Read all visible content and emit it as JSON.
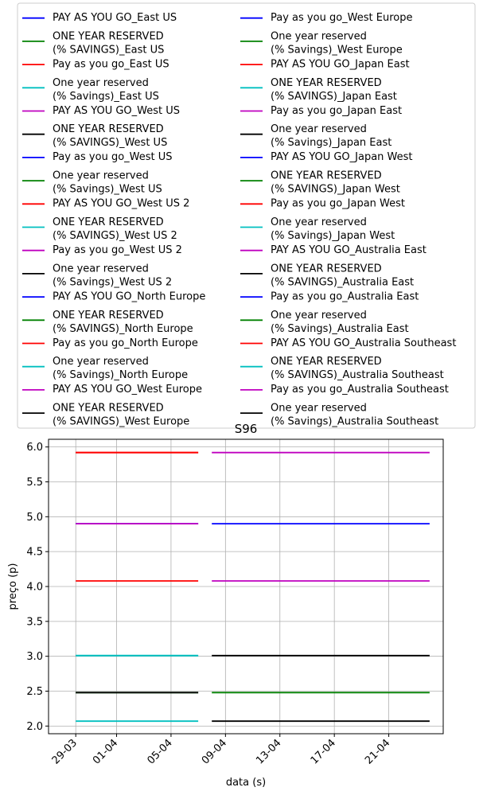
{
  "chart_data": {
    "type": "line",
    "title": "S96",
    "xlabel": "data (s)",
    "ylabel": "preço (p)",
    "ylim": [
      1.89,
      6.11
    ],
    "yticks": [
      2.0,
      2.5,
      3.0,
      3.5,
      4.0,
      4.5,
      5.0,
      5.5,
      6.0
    ],
    "ytick_labels": [
      "2.0",
      "2.5",
      "3.0",
      "3.5",
      "4.0",
      "4.5",
      "5.0",
      "5.5",
      "6.0"
    ],
    "xlim": [
      "2020-03-27",
      "2020-04-25"
    ],
    "xticks": [
      "2020-03-29",
      "2020-04-01",
      "2020-04-05",
      "2020-04-09",
      "2020-04-13",
      "2020-04-17",
      "2020-04-21"
    ],
    "xtick_labels": [
      "29-03",
      "01-04",
      "05-04",
      "09-04",
      "13-04",
      "17-04",
      "21-04"
    ],
    "grid": true,
    "legend_position": "top",
    "legend_columns": 2,
    "series": [
      {
        "name": "PAY AS YOU GO_East US",
        "color": "#0000ff",
        "segments": [
          {
            "x": [
              "2020-03-29",
              "2020-04-07"
            ],
            "y": [
              4.9,
              4.9
            ]
          }
        ]
      },
      {
        "name": "ONE YEAR RESERVED\n(% SAVINGS)_East US",
        "color": "#008000",
        "segments": [
          {
            "x": [
              "2020-03-29",
              "2020-04-07"
            ],
            "y": [
              2.48,
              2.48
            ]
          }
        ]
      },
      {
        "name": "Pay as you go_East US",
        "color": "#ff0000",
        "segments": [
          {
            "x": [
              "2020-03-29",
              "2020-04-07"
            ],
            "y": [
              5.92,
              5.92
            ]
          }
        ]
      },
      {
        "name": "One year reserved\n(% Savings)_East US",
        "color": "#00bfbf",
        "segments": [
          {
            "x": [
              "2020-03-29",
              "2020-04-07"
            ],
            "y": [
              3.01,
              3.01
            ]
          }
        ]
      },
      {
        "name": "PAY AS YOU GO_West US",
        "color": "#bf00bf",
        "segments": [
          {
            "x": [
              "2020-03-29",
              "2020-04-07"
            ],
            "y": [
              4.9,
              4.9
            ]
          }
        ]
      },
      {
        "name": "ONE YEAR RESERVED\n(% SAVINGS)_West US",
        "color": "#000000",
        "segments": [
          {
            "x": [
              "2020-03-29",
              "2020-04-07"
            ],
            "y": [
              2.48,
              2.48
            ]
          }
        ]
      },
      {
        "name": "Pay as you go_West US",
        "color": "#0000ff",
        "segments": []
      },
      {
        "name": "One year reserved\n(% Savings)_West US",
        "color": "#008000",
        "segments": []
      },
      {
        "name": "PAY AS YOU GO_West US 2",
        "color": "#ff0000",
        "segments": [
          {
            "x": [
              "2020-03-29",
              "2020-04-07"
            ],
            "y": [
              4.08,
              4.08
            ]
          }
        ]
      },
      {
        "name": "ONE YEAR RESERVED\n(% SAVINGS)_West US 2",
        "color": "#00bfbf",
        "segments": [
          {
            "x": [
              "2020-03-29",
              "2020-04-07"
            ],
            "y": [
              2.07,
              2.07
            ]
          }
        ]
      },
      {
        "name": "Pay as you go_West US 2",
        "color": "#bf00bf",
        "segments": []
      },
      {
        "name": "One year reserved\n(% Savings)_West US 2",
        "color": "#000000",
        "segments": []
      },
      {
        "name": "PAY AS YOU GO_North Europe",
        "color": "#0000ff",
        "segments": []
      },
      {
        "name": "ONE YEAR RESERVED\n(% SAVINGS)_North Europe",
        "color": "#008000",
        "segments": []
      },
      {
        "name": "Pay as you go_North Europe",
        "color": "#ff0000",
        "segments": [
          {
            "x": [
              "2020-03-29",
              "2020-04-07"
            ],
            "y": [
              5.92,
              5.92
            ]
          }
        ]
      },
      {
        "name": "One year reserved\n(% Savings)_North Europe",
        "color": "#00bfbf",
        "segments": [
          {
            "x": [
              "2020-03-29",
              "2020-04-07"
            ],
            "y": [
              3.01,
              3.01
            ]
          }
        ]
      },
      {
        "name": "PAY AS YOU GO_West Europe",
        "color": "#bf00bf",
        "segments": []
      },
      {
        "name": "ONE YEAR RESERVED\n(% SAVINGS)_West Europe",
        "color": "#000000",
        "segments": []
      },
      {
        "name": "Pay as you go_West Europe",
        "color": "#0000ff",
        "segments": [
          {
            "x": [
              "2020-04-08",
              "2020-04-24"
            ],
            "y": [
              4.9,
              4.9
            ]
          }
        ]
      },
      {
        "name": "One year reserved\n(% Savings)_West Europe",
        "color": "#008000",
        "segments": [
          {
            "x": [
              "2020-04-08",
              "2020-04-24"
            ],
            "y": [
              2.48,
              2.48
            ]
          }
        ]
      },
      {
        "name": "PAY AS YOU GO_Japan East",
        "color": "#ff0000",
        "segments": []
      },
      {
        "name": "ONE YEAR RESERVED\n(% SAVINGS)_Japan East",
        "color": "#00bfbf",
        "segments": []
      },
      {
        "name": "Pay as you go_Japan East",
        "color": "#bf00bf",
        "segments": [
          {
            "x": [
              "2020-04-08",
              "2020-04-24"
            ],
            "y": [
              4.08,
              4.08
            ]
          }
        ]
      },
      {
        "name": "One year reserved\n(% Savings)_Japan East",
        "color": "#000000",
        "segments": [
          {
            "x": [
              "2020-04-08",
              "2020-04-24"
            ],
            "y": [
              2.07,
              2.07
            ]
          }
        ]
      },
      {
        "name": "PAY AS YOU GO_Japan West",
        "color": "#0000ff",
        "segments": []
      },
      {
        "name": "ONE YEAR RESERVED\n(% SAVINGS)_Japan West",
        "color": "#008000",
        "segments": []
      },
      {
        "name": "Pay as you go_Japan West",
        "color": "#ff0000",
        "segments": []
      },
      {
        "name": "One year reserved\n(% Savings)_Japan West",
        "color": "#00bfbf",
        "segments": []
      },
      {
        "name": "PAY AS YOU GO_Australia East",
        "color": "#bf00bf",
        "segments": []
      },
      {
        "name": "ONE YEAR RESERVED\n(% SAVINGS)_Australia East",
        "color": "#000000",
        "segments": []
      },
      {
        "name": "Pay as you go_Australia East",
        "color": "#0000ff",
        "segments": []
      },
      {
        "name": "One year reserved\n(% Savings)_Australia East",
        "color": "#008000",
        "segments": []
      },
      {
        "name": "PAY AS YOU GO_Australia Southeast",
        "color": "#ff0000",
        "segments": []
      },
      {
        "name": "ONE YEAR RESERVED\n(% SAVINGS)_Australia Southeast",
        "color": "#00bfbf",
        "segments": []
      },
      {
        "name": "Pay as you go_Australia Southeast",
        "color": "#bf00bf",
        "segments": [
          {
            "x": [
              "2020-04-08",
              "2020-04-24"
            ],
            "y": [
              5.92,
              5.92
            ]
          }
        ]
      },
      {
        "name": "One year reserved\n(% Savings)_Australia Southeast",
        "color": "#000000",
        "segments": [
          {
            "x": [
              "2020-04-08",
              "2020-04-24"
            ],
            "y": [
              3.01,
              3.01
            ]
          }
        ]
      }
    ]
  }
}
